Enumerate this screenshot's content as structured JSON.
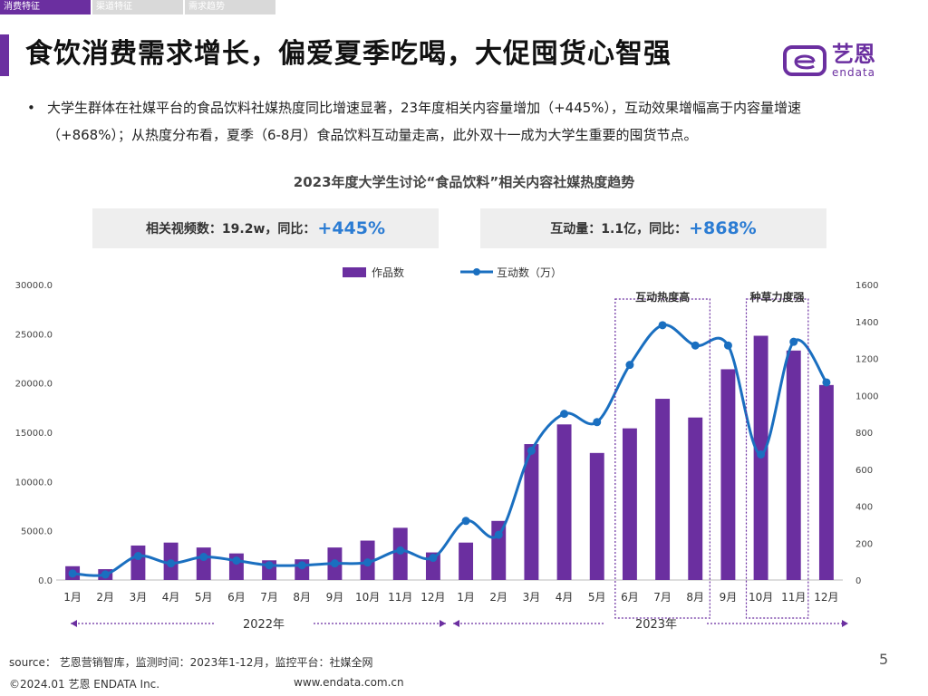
{
  "tabs": [
    {
      "label": "消费特征",
      "active": true
    },
    {
      "label": "渠道特征",
      "active": false
    },
    {
      "label": "需求趋势",
      "active": false
    }
  ],
  "page_title": "食饮消费需求增长，偏爱夏季吃喝，大促囤货心智强",
  "logo": {
    "text": "艺恩",
    "sub": "endata"
  },
  "bullet": "大学生群体在社媒平台的食品饮料社媒热度同比增速显著，23年度相关内容量增加（+445%），互动效果增幅高于内容量增速（+868%）；从热度分布看，夏季（6-8月）食品饮料互动量走高，此外双十一成为大学生重要的囤货节点。",
  "bullet_dot": "•",
  "kpis": [
    {
      "label": "相关视频数：19.2w，同比：",
      "value": "+445%"
    },
    {
      "label": "互动量：1.1亿，同比：",
      "value": "+868%"
    }
  ],
  "colors": {
    "purple": "#6b2fa0",
    "blue": "#1a6fc0",
    "kpi_blue": "#2b7cd3"
  },
  "chart_data": {
    "type": "bar+line",
    "title": "2023年度大学生讨论“食品饮料”相关内容社媒热度趋势",
    "categories": [
      "1月",
      "2月",
      "3月",
      "4月",
      "5月",
      "6月",
      "7月",
      "8月",
      "9月",
      "10月",
      "11月",
      "12月",
      "1月",
      "2月",
      "3月",
      "4月",
      "5月",
      "6月",
      "7月",
      "8月",
      "9月",
      "10月",
      "11月",
      "12月"
    ],
    "series": [
      {
        "name": "作品数",
        "type": "bar",
        "axis": "left",
        "values": [
          1400,
          1100,
          3500,
          3800,
          3300,
          2700,
          2000,
          2100,
          3300,
          4000,
          5300,
          2800,
          3800,
          6000,
          13800,
          15800,
          12900,
          15400,
          18400,
          16500,
          21400,
          24800,
          23300,
          19800
        ]
      },
      {
        "name": "互动数（万）",
        "type": "line",
        "axis": "right",
        "values": [
          35,
          30,
          130,
          90,
          125,
          105,
          80,
          80,
          90,
          95,
          160,
          120,
          320,
          245,
          700,
          900,
          855,
          1165,
          1380,
          1270,
          1270,
          680,
          1290,
          1070
        ]
      }
    ],
    "y_left": {
      "min": 0,
      "max": 30000,
      "ticks": [
        "0.0",
        "5000.0",
        "10000.0",
        "15000.0",
        "20000.0",
        "25000.0",
        "30000.0"
      ]
    },
    "y_right": {
      "min": 0,
      "max": 1600,
      "ticks": [
        "0",
        "200",
        "400",
        "600",
        "800",
        "1000",
        "1200",
        "1400",
        "1600"
      ]
    },
    "annotations": [
      {
        "label": "互动热度高",
        "from": "6月",
        "to": "8月"
      },
      {
        "label": "种草力度强",
        "from": "10月",
        "to": "11月"
      }
    ],
    "year_labels": [
      "2022年",
      "2023年"
    ]
  },
  "footer": {
    "source": "source： 艺恩营销智库，监测时间：2023年1-12月，监控平台：社媒全网",
    "copyright": "©2024.01  艺恩 ENDATA Inc.",
    "website": "www.endata.com.cn",
    "page": "5"
  }
}
